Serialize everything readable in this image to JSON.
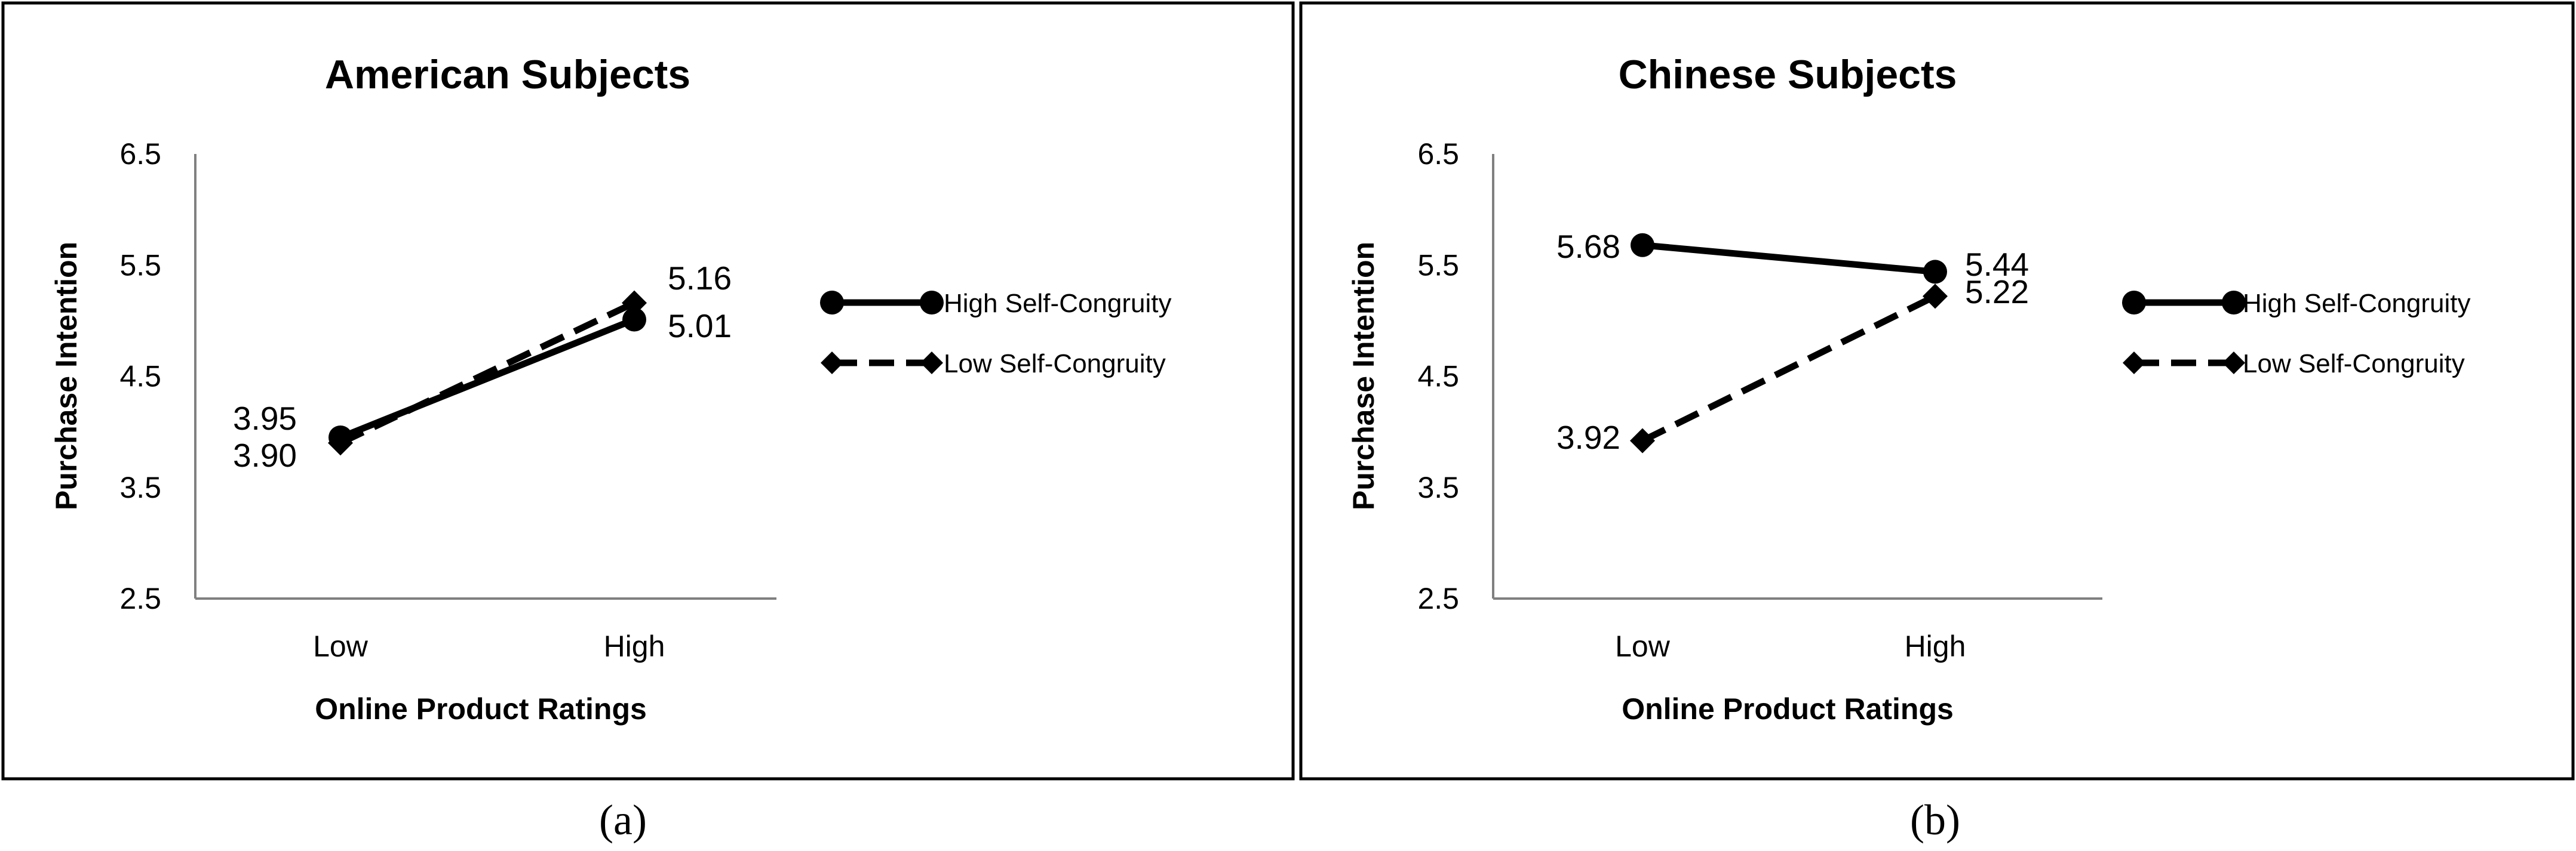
{
  "chart_data": [
    {
      "type": "line",
      "panel_label": "(a)",
      "title": "American Subjects",
      "xlabel": "Online Product Ratings",
      "ylabel": "Purchase Intention",
      "categories": [
        "Low",
        "High"
      ],
      "ylim": [
        2.5,
        6.5
      ],
      "yticks": [
        "2.5",
        "3.5",
        "4.5",
        "5.5",
        "6.5"
      ],
      "grid": false,
      "legend_position": "right",
      "series": [
        {
          "name": "High Self-Congruity",
          "values": [
            3.95,
            5.01
          ],
          "labels": [
            "3.95",
            "5.01"
          ],
          "style": "solid",
          "marker": "circle",
          "color": "#000000"
        },
        {
          "name": "Low Self-Congruity",
          "values": [
            3.9,
            5.16
          ],
          "labels": [
            "3.90",
            "5.16"
          ],
          "style": "dashed",
          "marker": "diamond",
          "color": "#000000"
        }
      ]
    },
    {
      "type": "line",
      "panel_label": "(b)",
      "title": "Chinese Subjects",
      "xlabel": "Online Product Ratings",
      "ylabel": "Purchase Intention",
      "categories": [
        "Low",
        "High"
      ],
      "ylim": [
        2.5,
        6.5
      ],
      "yticks": [
        "2.5",
        "3.5",
        "4.5",
        "5.5",
        "6.5"
      ],
      "grid": false,
      "legend_position": "right",
      "series": [
        {
          "name": "High Self-Congruity",
          "values": [
            5.68,
            5.44
          ],
          "labels": [
            "5.68",
            "5.44"
          ],
          "style": "solid",
          "marker": "circle",
          "color": "#000000"
        },
        {
          "name": "Low Self-Congruity",
          "values": [
            3.92,
            5.22
          ],
          "labels": [
            "3.92",
            "5.22"
          ],
          "style": "dashed",
          "marker": "diamond",
          "color": "#000000"
        }
      ]
    }
  ]
}
